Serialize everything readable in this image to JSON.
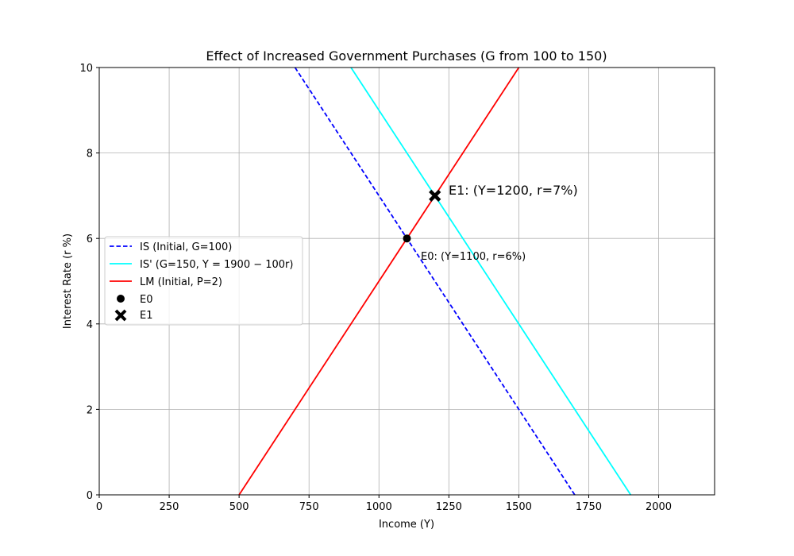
{
  "chart_data": {
    "type": "line",
    "title": "Effect of Increased Government Purchases (G from 100 to 150)",
    "xlabel": "Income (Y)",
    "ylabel": "Interest Rate (r %)",
    "xlim": [
      0,
      2200
    ],
    "ylim": [
      0,
      10
    ],
    "xticks": [
      0,
      250,
      500,
      750,
      1000,
      1250,
      1500,
      1750,
      2000
    ],
    "yticks": [
      0,
      2,
      4,
      6,
      8,
      10
    ],
    "grid": true,
    "legend_position": "center-left",
    "series": [
      {
        "name": "IS (Initial, G=100)",
        "style": "dashed",
        "color": "#0000ff",
        "points": [
          [
            700,
            10
          ],
          [
            1700,
            0
          ]
        ]
      },
      {
        "name": "IS' (G=150, Y = 1900 − 100r)",
        "style": "solid",
        "color": "#00ffff",
        "points": [
          [
            900,
            10
          ],
          [
            1900,
            0
          ]
        ]
      },
      {
        "name": "LM (Initial, P=2)",
        "style": "solid",
        "color": "#ff0000",
        "points": [
          [
            500,
            0
          ],
          [
            1500,
            10
          ]
        ]
      }
    ],
    "points": [
      {
        "name": "E0",
        "marker": "circle",
        "color": "#000000",
        "x": 1100,
        "y": 6,
        "annotation": "E0: (Y=1100, r=6%)"
      },
      {
        "name": "E1",
        "marker": "x",
        "color": "#000000",
        "x": 1200,
        "y": 7,
        "annotation": "E1: (Y=1200, r=7%)"
      }
    ]
  }
}
